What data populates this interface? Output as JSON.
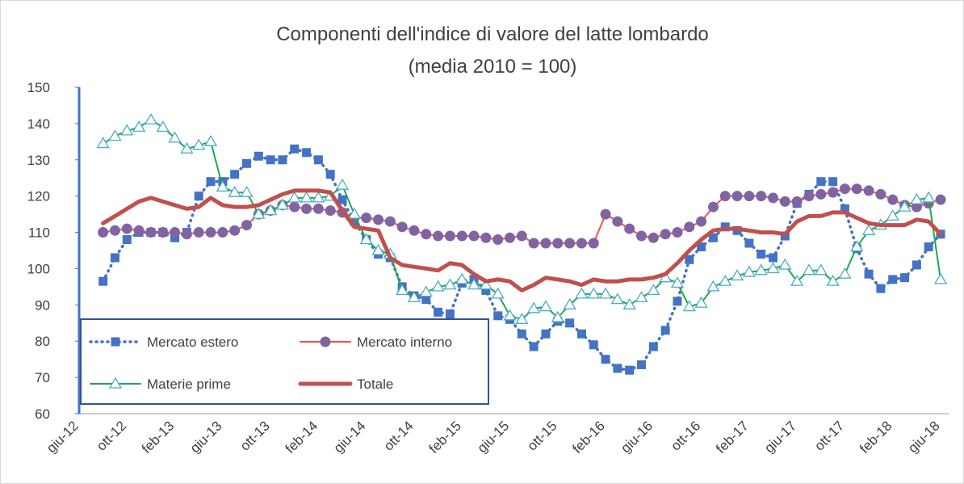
{
  "chart_data": {
    "type": "line",
    "title": "Componenti dell'indice di valore del latte lombardo",
    "subtitle": "(media 2010 = 100)",
    "categories": [
      "giu-12",
      null,
      null,
      null,
      "ott-12",
      null,
      null,
      null,
      "feb-13",
      null,
      null,
      null,
      "giu-13",
      null,
      null,
      null,
      "ott-13",
      null,
      null,
      null,
      "feb-14",
      null,
      null,
      null,
      "giu-14",
      null,
      null,
      null,
      "ott-14",
      null,
      null,
      null,
      "feb-15",
      null,
      null,
      null,
      "giu-15",
      null,
      null,
      null,
      "ott-15",
      null,
      null,
      null,
      "feb-16",
      null,
      null,
      null,
      "giu-16",
      null,
      null,
      null,
      "ott-16",
      null,
      null,
      null,
      "feb-17",
      null,
      null,
      null,
      "giu-17",
      null,
      null,
      null,
      "ott-17",
      null,
      null,
      null,
      "feb-18",
      null,
      null,
      null,
      "giu-18"
    ],
    "ylim": [
      60,
      150
    ],
    "yticks": [
      60,
      70,
      80,
      90,
      100,
      110,
      120,
      130,
      140,
      150
    ],
    "grid": false,
    "legend": "lower left",
    "series": [
      {
        "name": "Mercato estero",
        "color": "#4472c4",
        "marker": "square",
        "marker_color": "#4472c4",
        "dash": true,
        "values": [
          null,
          null,
          96.5,
          103,
          108,
          110,
          110,
          110,
          108.5,
          110,
          120,
          124,
          124,
          126,
          129,
          131,
          130,
          130,
          133,
          132,
          130,
          126,
          119,
          113,
          108,
          104,
          103,
          95,
          92.5,
          91.5,
          88,
          87.5,
          96,
          97,
          94,
          87,
          86,
          82,
          78.5,
          82,
          85.5,
          85,
          82,
          79,
          75,
          72.5,
          72,
          73.5,
          78.5,
          83,
          91,
          102.5,
          106,
          108.5,
          111.5,
          110.5,
          107,
          104,
          103,
          109,
          118,
          120.5,
          124,
          124,
          116.5,
          105.5,
          98.5,
          94.5,
          97,
          97.5,
          101,
          106,
          109.5
        ]
      },
      {
        "name": "Mercato interno",
        "color": "#ff4b4b",
        "marker": "circle",
        "marker_color": "#8064a2",
        "values": [
          null,
          null,
          110,
          110.5,
          111,
          110.5,
          110,
          110,
          110,
          109.5,
          110,
          110,
          110,
          110.5,
          112,
          115,
          116,
          117.5,
          117,
          116.5,
          116.5,
          116,
          115.5,
          114,
          114,
          113.5,
          113,
          111.5,
          110.5,
          109.5,
          109,
          109,
          109,
          109,
          108.5,
          108,
          108.5,
          109,
          107,
          107,
          107,
          107,
          107,
          107,
          115,
          113,
          111,
          109,
          108.5,
          109.5,
          110,
          111.5,
          113,
          117,
          120,
          120,
          120,
          120,
          119.5,
          118.5,
          118.5,
          120,
          120.5,
          121,
          122,
          122,
          121.5,
          120.5,
          119,
          117.5,
          117,
          118,
          119
        ]
      },
      {
        "name": "Materie prime",
        "color": "#1fa84f",
        "marker": "triangle",
        "marker_color": "#4bacc6",
        "values": [
          null,
          null,
          134.5,
          136.5,
          138,
          139,
          141,
          139,
          136,
          133,
          134,
          135,
          122.5,
          121,
          121,
          115,
          116,
          117.5,
          119.5,
          119.5,
          119.5,
          120,
          123,
          115,
          108,
          105,
          104,
          94,
          92,
          93.5,
          95,
          95.5,
          97,
          95.5,
          95.5,
          93,
          87,
          86,
          89,
          89.5,
          86.5,
          90,
          93,
          93,
          93,
          91.5,
          90,
          92,
          94,
          97.5,
          96,
          89.5,
          90.5,
          95,
          96.5,
          98,
          99,
          99.5,
          100,
          101,
          96.5,
          99.5,
          99.5,
          96.5,
          98.5,
          106,
          110.5,
          112,
          114.5,
          117,
          119,
          119.5,
          97
        ]
      },
      {
        "name": "Totale",
        "color": "#c0504d",
        "marker": "none",
        "width": 5,
        "values": [
          null,
          null,
          112.5,
          114.5,
          116.5,
          118.5,
          119.5,
          118.5,
          117.5,
          116.5,
          117,
          119.5,
          117.5,
          117,
          117,
          117.5,
          119,
          120.5,
          121.5,
          121.5,
          121.5,
          121,
          116,
          111.5,
          111,
          110.5,
          103,
          101,
          100.5,
          100,
          99.5,
          101.5,
          101,
          98.5,
          96.5,
          97,
          96.5,
          94,
          95.5,
          97.5,
          97,
          96.5,
          95.5,
          97,
          96.5,
          96.5,
          97,
          97,
          97.5,
          98.5,
          101.5,
          105,
          108,
          110.5,
          111,
          111,
          110.5,
          110,
          110,
          109.5,
          113,
          114.5,
          114.5,
          115.5,
          115.5,
          114,
          112.5,
          112,
          112,
          112,
          113.5,
          113,
          109.5
        ]
      }
    ]
  }
}
